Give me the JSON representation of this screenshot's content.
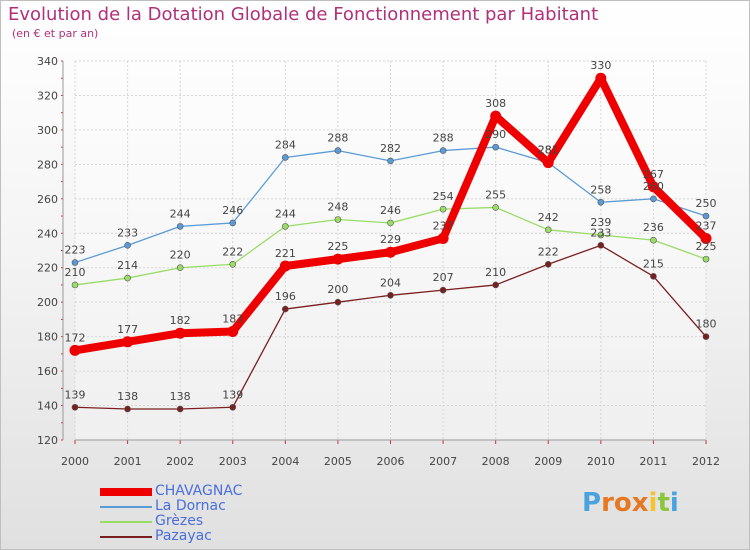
{
  "chart_data": {
    "type": "line",
    "title": "Evolution de la Dotation Globale de Fonctionnement par Habitant",
    "subtitle": "(en € et par an)",
    "categories": [
      "2000",
      "2001",
      "2002",
      "2003",
      "2004",
      "2005",
      "2006",
      "2007",
      "2008",
      "2009",
      "2010",
      "2011",
      "2012"
    ],
    "y_ticks": [
      "120",
      "140",
      "160",
      "180",
      "200",
      "220",
      "240",
      "260",
      "280",
      "300",
      "320",
      "340"
    ],
    "ylim": [
      120,
      340
    ],
    "grid": true,
    "legend_position": "bottom-left",
    "series": [
      {
        "name": "CHAVAGNAC",
        "color": "#ee0000",
        "emphasis": true,
        "values": [
          172,
          177,
          182,
          183,
          221,
          225,
          229,
          237,
          308,
          281,
          330,
          267,
          237
        ]
      },
      {
        "name": "La Dornac",
        "color": "#5a9bd5",
        "emphasis": false,
        "values": [
          223,
          233,
          244,
          246,
          284,
          288,
          282,
          288,
          290,
          281,
          258,
          260,
          250
        ]
      },
      {
        "name": "Grèzes",
        "color": "#99dd66",
        "emphasis": false,
        "values": [
          210,
          214,
          220,
          222,
          244,
          248,
          246,
          254,
          255,
          242,
          239,
          236,
          225
        ]
      },
      {
        "name": "Pazayac",
        "color": "#7a1f1f",
        "emphasis": false,
        "values": [
          139,
          138,
          138,
          139,
          196,
          200,
          204,
          207,
          210,
          222,
          233,
          215,
          180
        ]
      }
    ]
  },
  "branding": {
    "logo_letters": [
      "P",
      "r",
      "o",
      "x",
      "i",
      "t",
      "i"
    ],
    "logo_colors": [
      "#4aa3df",
      "#e87722",
      "#e87722",
      "#e87722",
      "#f4c430",
      "#8cc63f",
      "#4aa3df"
    ]
  }
}
